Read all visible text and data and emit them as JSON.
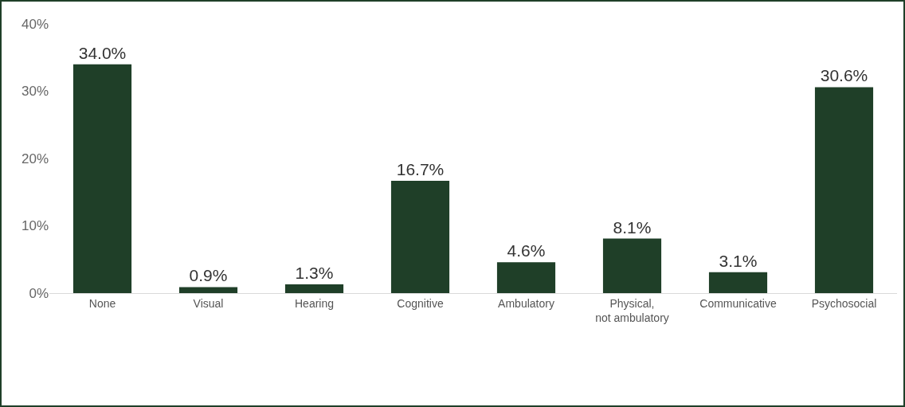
{
  "chart_data": {
    "type": "bar",
    "categories": [
      "None",
      "Visual",
      "Hearing",
      "Cognitive",
      "Ambulatory",
      "Physical,\nnot ambulatory",
      "Communicative",
      "Psychosocial"
    ],
    "values": [
      34.0,
      0.9,
      1.3,
      16.7,
      4.6,
      8.1,
      3.1,
      30.6
    ],
    "value_labels": [
      "34.0%",
      "0.9%",
      "1.3%",
      "16.7%",
      "4.6%",
      "8.1%",
      "3.1%",
      "30.6%"
    ],
    "color": "#1f3f28",
    "ylim": [
      0,
      40
    ],
    "yticks": [
      {
        "value": 0,
        "label": "0%"
      },
      {
        "value": 10,
        "label": "10%"
      },
      {
        "value": 20,
        "label": "20%"
      },
      {
        "value": 30,
        "label": "30%"
      },
      {
        "value": 40,
        "label": "40%"
      }
    ],
    "grid": false
  }
}
